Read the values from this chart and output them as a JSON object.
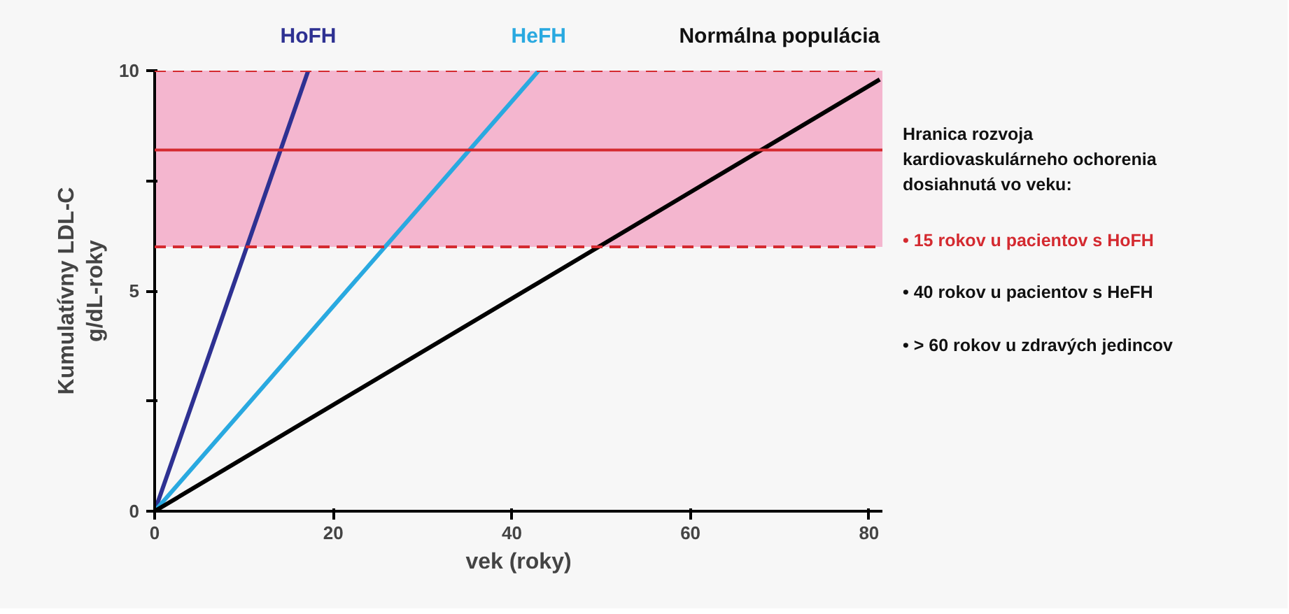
{
  "chart_data": {
    "type": "line",
    "xlabel": "vek (roky)",
    "ylabel": "Kumulatívny LDL-C\ng/dL-roky",
    "xlim": [
      0,
      81.5
    ],
    "ylim": [
      0,
      10
    ],
    "xticks": [
      0,
      20,
      40,
      60,
      80
    ],
    "yticks": [
      0,
      {
        "value": 2.5,
        "label": null
      },
      5,
      {
        "value": 7.5,
        "label": null
      },
      10
    ],
    "grid": false,
    "marker": "none",
    "line_style": "solid",
    "series": [
      {
        "name": "HoFH",
        "color": "#2e3192",
        "x": [
          0,
          17.2
        ],
        "values": [
          0,
          10
        ]
      },
      {
        "name": "HeFH",
        "color": "#29a9e0",
        "x": [
          0,
          43
        ],
        "values": [
          0,
          10
        ]
      },
      {
        "name": "Normálna populácia",
        "color": "#000000",
        "x": [
          0,
          81.2
        ],
        "values": [
          0,
          9.8
        ]
      }
    ],
    "bands": [
      {
        "axis": "y",
        "from": 6,
        "to": 10,
        "color": "#f4b6cf"
      }
    ],
    "ref_lines": [
      {
        "axis": "y",
        "value": 6,
        "color": "#d42a30",
        "line_style": "dashed"
      },
      {
        "axis": "y",
        "value": 8.2,
        "color": "#d42a30",
        "line_style": "solid"
      },
      {
        "axis": "y",
        "value": 10,
        "color": "#d42a30",
        "line_style": "dashed"
      }
    ],
    "annotations": [
      "Hranica rozvoja kardiovaskulárneho ochorenia dosiahnutá vo veku:",
      "• 15 rokov u pacientov s HoFH",
      "• 40 rokov u pacientov s HeFH",
      "• > 60 rokov u zdravých jedincov"
    ]
  }
}
